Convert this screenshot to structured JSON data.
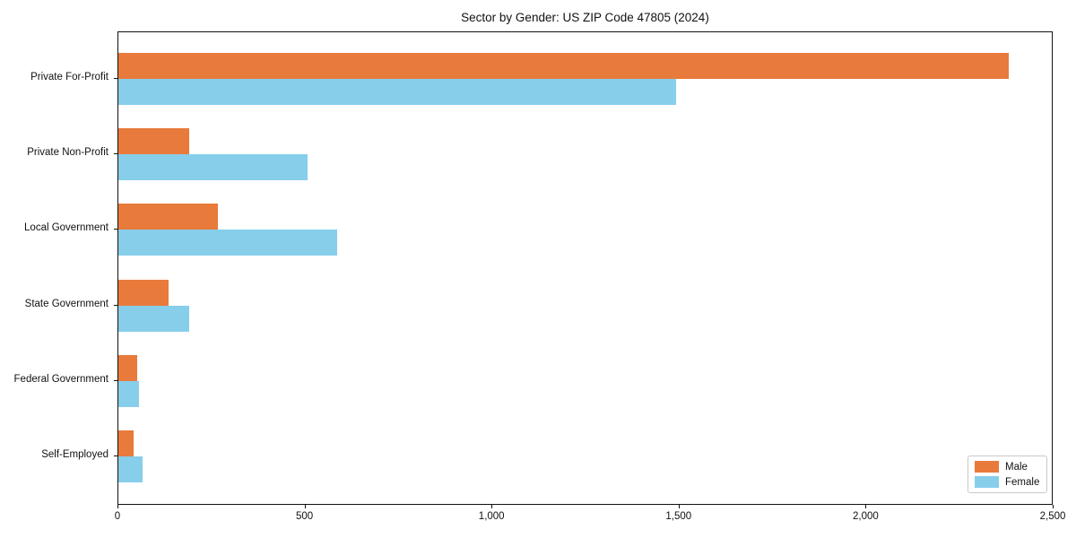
{
  "title": "Sector by Gender: US ZIP Code 47805 (2024)",
  "colors": {
    "male": "#E87A3C",
    "female": "#87CEEB",
    "axis": "#111111",
    "legend_border": "#c9c9c9",
    "background": "#ffffff"
  },
  "legend": {
    "items": [
      {
        "label": "Male",
        "color": "#E87A3C"
      },
      {
        "label": "Female",
        "color": "#87CEEB"
      }
    ],
    "position": "lower right"
  },
  "chart_data": {
    "type": "bar",
    "orientation": "horizontal",
    "title": "Sector by Gender: US ZIP Code 47805 (2024)",
    "categories": [
      "Private For-Profit",
      "Private Non-Profit",
      "Local Government",
      "State Government",
      "Federal Government",
      "Self-Employed"
    ],
    "series": [
      {
        "name": "Male",
        "color": "#E87A3C",
        "values": [
          2380,
          190,
          265,
          135,
          50,
          40
        ]
      },
      {
        "name": "Female",
        "color": "#87CEEB",
        "values": [
          1490,
          505,
          585,
          190,
          55,
          65
        ]
      }
    ],
    "xlabel": "",
    "ylabel": "",
    "xlim": [
      0,
      2500
    ],
    "xticks": [
      0,
      500,
      1000,
      1500,
      2000,
      2500
    ],
    "xtick_labels": [
      "0",
      "500",
      "1,000",
      "1,500",
      "2,000",
      "2,500"
    ],
    "grid": false,
    "legend_position": "lower right"
  }
}
